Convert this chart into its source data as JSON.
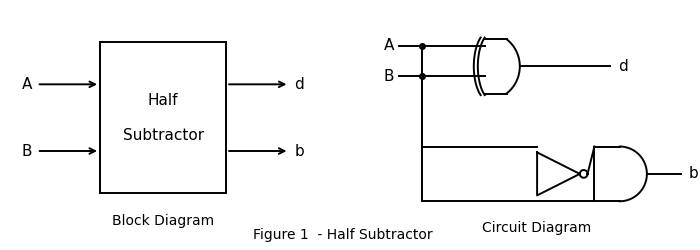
{
  "bg_color": "#ffffff",
  "line_color": "#000000",
  "fig_width": 7.0,
  "fig_height": 2.5,
  "dpi": 100,
  "block_label1": "Half",
  "block_label2": "Subtractor",
  "block_diagram_label": "Block Diagram",
  "circuit_diagram_label": "Circuit Diagram",
  "figure_label": "Figure 1  - Half Subtractor"
}
